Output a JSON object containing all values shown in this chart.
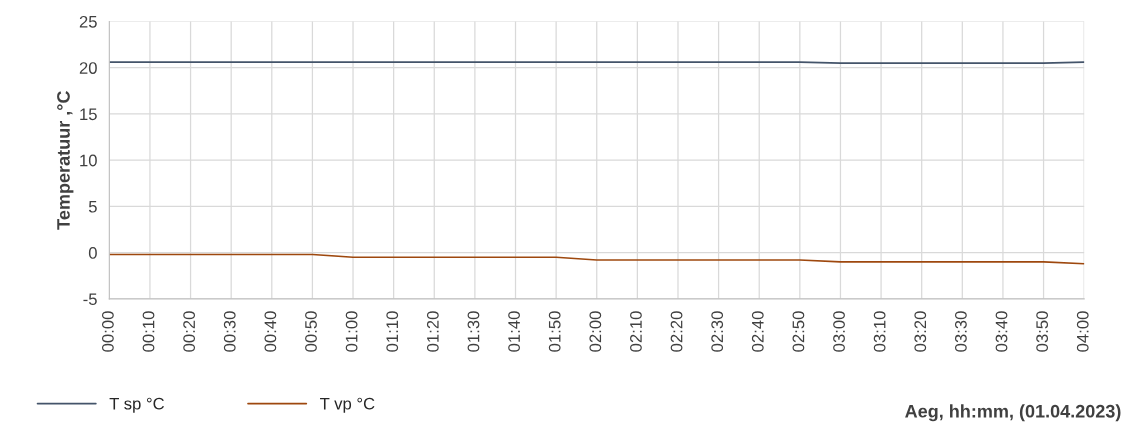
{
  "chart_data": {
    "type": "line",
    "xlabel": "Aeg, hh:mm, (01.04.2023)",
    "ylabel": "Temperatuur ,°C",
    "categories": [
      "00:00",
      "00:10",
      "00:20",
      "00:30",
      "00:40",
      "00:50",
      "01:00",
      "01:10",
      "01:20",
      "01:30",
      "01:40",
      "01:50",
      "02:00",
      "02:10",
      "02:20",
      "02:30",
      "02:40",
      "02:50",
      "03:00",
      "03:10",
      "03:20",
      "03:30",
      "03:40",
      "03:50",
      "04:00"
    ],
    "series": [
      {
        "name": "T sp °C",
        "color": "#44546a",
        "values": [
          20.6,
          20.6,
          20.6,
          20.6,
          20.6,
          20.6,
          20.6,
          20.6,
          20.6,
          20.6,
          20.6,
          20.6,
          20.6,
          20.6,
          20.6,
          20.6,
          20.6,
          20.6,
          20.5,
          20.5,
          20.5,
          20.5,
          20.5,
          20.5,
          20.6
        ]
      },
      {
        "name": "T vp °C",
        "color": "#9e480e",
        "values": [
          -0.2,
          -0.2,
          -0.2,
          -0.2,
          -0.2,
          -0.2,
          -0.5,
          -0.5,
          -0.5,
          -0.5,
          -0.5,
          -0.5,
          -0.8,
          -0.8,
          -0.8,
          -0.8,
          -0.8,
          -0.8,
          -1.0,
          -1.0,
          -1.0,
          -1.0,
          -1.0,
          -1.0,
          -1.2
        ]
      }
    ],
    "ylim": [
      -5,
      25
    ],
    "yticks": [
      -5,
      0,
      5,
      10,
      15,
      20,
      25
    ],
    "grid": true,
    "legend": "bottom left",
    "marker": "none",
    "line_style": "solid"
  }
}
